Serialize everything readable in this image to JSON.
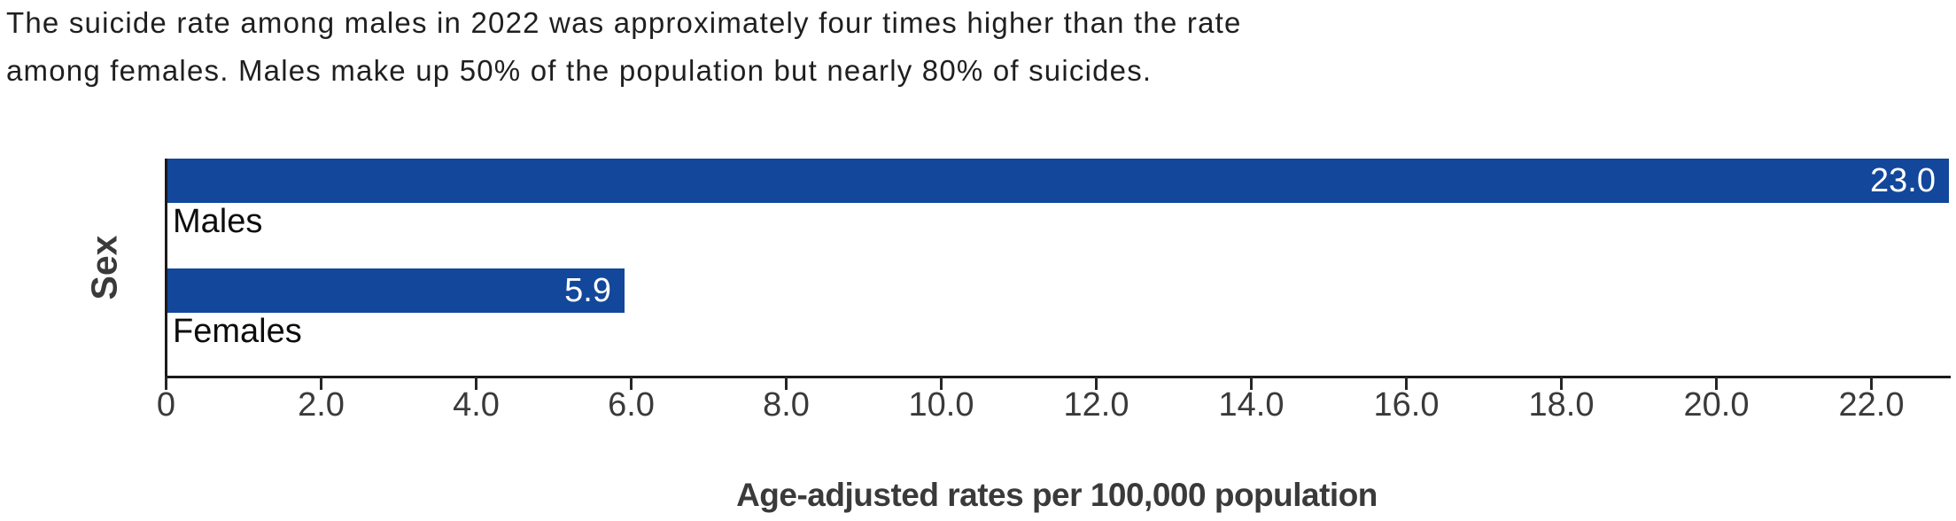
{
  "description": {
    "lines": [
      "The suicide rate among males in 2022 was approximately four times higher than the rate",
      "among females. Males make up 50% of the population but nearly 80% of suicides."
    ]
  },
  "chart_data": {
    "type": "bar",
    "orientation": "horizontal",
    "title": "",
    "xlabel": "Age-adjusted rates per 100,000 population",
    "ylabel": "Sex",
    "categories": [
      "Males",
      "Females"
    ],
    "values": [
      23.0,
      5.9
    ],
    "value_labels": [
      "23.0",
      "5.9"
    ],
    "xlim": [
      0,
      23
    ],
    "xtick_values": [
      0,
      2,
      4,
      6,
      8,
      10,
      12,
      14,
      16,
      18,
      20,
      22
    ],
    "xtick_labels": [
      "0",
      "2.0",
      "4.0",
      "6.0",
      "8.0",
      "10.0",
      "12.0",
      "14.0",
      "16.0",
      "18.0",
      "20.0",
      "22.0"
    ],
    "bar_color": "#12479B",
    "grid": false,
    "legend": false
  }
}
